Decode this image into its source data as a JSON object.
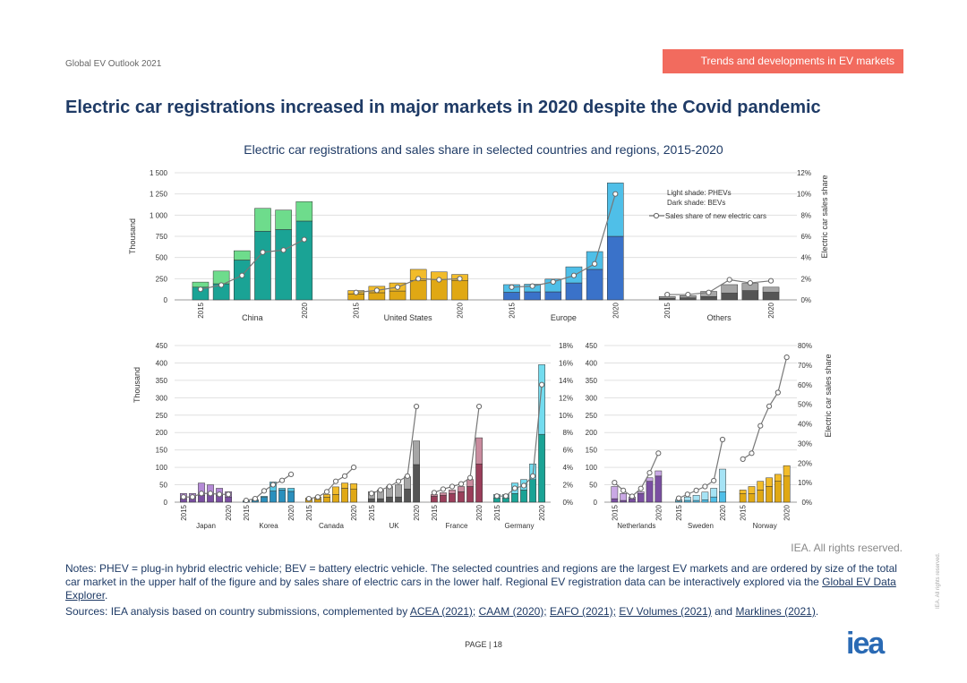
{
  "header": {
    "doc_label": "Global EV Outlook 2021",
    "section_tag": "Trends and developments in EV markets",
    "title": "Electric car registrations increased in major markets in 2020 despite the Covid pandemic"
  },
  "footer": {
    "rights": "IEA. All rights reserved.",
    "notes_text": "Notes: PHEV = plug-in hybrid electric vehicle; BEV = battery electric vehicle. The selected countries and regions are the largest EV markets and are ordered by size of the total car market in the upper half of the figure and by sales share of electric cars in the lower half. Regional EV registration data can be interactively explored via the ",
    "notes_link": "Global EV Data Explorer",
    "notes_end": ".",
    "sources_prefix": "Sources: IEA analysis based on country submissions, complemented by ",
    "sources_links": [
      "ACEA (2021);",
      "CAAM (2020);",
      "EAFO (2021);",
      "EV Volumes (2021)",
      "Marklines (2021)"
    ],
    "sources_and": "and",
    "sources_end": ".",
    "page_label": "PAGE | 18",
    "logo": "iea",
    "side_note": "IEA. All rights reserved."
  },
  "colors": {
    "China": {
      "dark": "#1aa395",
      "light": "#6edc8c"
    },
    "United States": {
      "dark": "#e0a814",
      "light": "#f2bc2a"
    },
    "Europe": {
      "dark": "#3a72c9",
      "light": "#4fbfe8"
    },
    "Others": {
      "dark": "#555555",
      "light": "#a6a6a6"
    },
    "Japan": {
      "dark": "#7a4fa1",
      "light": "#b48ad6"
    },
    "Korea": {
      "dark": "#2a8fbd",
      "light": "#56c8e6"
    },
    "Canada": {
      "dark": "#e0a814",
      "light": "#f2bc2a"
    },
    "UK": {
      "dark": "#555555",
      "light": "#a6a6a6"
    },
    "France": {
      "dark": "#9a3e5a",
      "light": "#c98b9e"
    },
    "Germany": {
      "dark": "#1aa395",
      "light": "#73dcef"
    },
    "Netherlands": {
      "dark": "#7a4fa1",
      "light": "#c9a8e4"
    },
    "Sweden": {
      "dark": "#4fbfe8",
      "light": "#a6e3f5"
    },
    "Norway": {
      "dark": "#e0a814",
      "light": "#f2bc2a"
    }
  },
  "chart_data": [
    {
      "type": "bar",
      "stacked": true,
      "title": "Electric car registrations and sales share in selected countries and regions, 2015-2020",
      "ylabel": "Thousand",
      "y2label": "Electric car sales share",
      "ylim": [
        0,
        1500
      ],
      "yticks": [
        0,
        250,
        500,
        750,
        1000,
        1250,
        1500
      ],
      "yticklabels": [
        "0",
        "250",
        "500",
        "750",
        "1 000",
        "1 250",
        "1 500"
      ],
      "y2lim": [
        0,
        12
      ],
      "y2ticks": [
        0,
        2,
        4,
        6,
        8,
        10,
        12
      ],
      "y2ticklabels": [
        "0%",
        "2%",
        "4%",
        "6%",
        "8%",
        "10%",
        "12%"
      ],
      "years": [
        "2015",
        "2020"
      ],
      "legend": {
        "light": "Light shade: PHEVs",
        "dark": "Dark shade: BEVs",
        "line": "Sales share of new electric cars"
      },
      "groups": [
        {
          "name": "China",
          "bev": [
            150,
            190,
            470,
            810,
            830,
            930
          ],
          "phev": [
            60,
            150,
            110,
            270,
            230,
            230
          ],
          "share": [
            1.0,
            1.4,
            2.3,
            4.5,
            4.7,
            5.7
          ]
        },
        {
          "name": "United States",
          "bev": [
            70,
            85,
            105,
            230,
            240,
            230
          ],
          "phev": [
            40,
            75,
            95,
            130,
            90,
            70
          ],
          "share": [
            0.7,
            0.9,
            1.2,
            2.0,
            1.9,
            2.0
          ]
        },
        {
          "name": "Europe",
          "bev": [
            90,
            95,
            95,
            200,
            360,
            750
          ],
          "phev": [
            90,
            90,
            150,
            190,
            210,
            630
          ],
          "share": [
            1.2,
            1.3,
            1.7,
            2.3,
            3.4,
            10.0
          ]
        },
        {
          "name": "Others",
          "bev": [
            20,
            25,
            40,
            80,
            110,
            90
          ],
          "phev": [
            20,
            25,
            60,
            100,
            85,
            60
          ],
          "share": [
            0.5,
            0.5,
            0.7,
            1.9,
            1.6,
            1.8
          ]
        }
      ]
    },
    {
      "type": "bar",
      "stacked": true,
      "ylabel": "Thousand",
      "ylim": [
        0,
        450
      ],
      "yticks": [
        0,
        50,
        100,
        150,
        200,
        250,
        300,
        350,
        400,
        450
      ],
      "y2lim": [
        0,
        18
      ],
      "y2ticks": [
        0,
        2,
        4,
        6,
        8,
        10,
        12,
        14,
        16,
        18
      ],
      "y2ticklabels": [
        "0%",
        "2%",
        "4%",
        "6%",
        "8%",
        "10%",
        "12%",
        "14%",
        "16%",
        "18%"
      ],
      "years": [
        "2015",
        "2020"
      ],
      "groups": [
        {
          "name": "Japan",
          "bev": [
            10,
            15,
            20,
            25,
            20,
            15
          ],
          "phev": [
            15,
            10,
            35,
            25,
            20,
            15
          ],
          "share": [
            0.6,
            0.6,
            1.0,
            1.0,
            0.9,
            0.9
          ]
        },
        {
          "name": "Korea",
          "bev": [
            3,
            5,
            14,
            32,
            35,
            31
          ],
          "phev": [
            1,
            2,
            3,
            26,
            5,
            9
          ],
          "share": [
            0.2,
            0.4,
            1.3,
            2.0,
            2.5,
            3.2
          ]
        },
        {
          "name": "Canada",
          "bev": [
            6,
            8,
            14,
            22,
            40,
            38
          ],
          "phev": [
            6,
            7,
            8,
            22,
            15,
            15
          ],
          "share": [
            0.4,
            0.6,
            1.2,
            2.4,
            3.0,
            4.0
          ]
        },
        {
          "name": "UK",
          "bev": [
            10,
            10,
            15,
            15,
            38,
            108
          ],
          "phev": [
            20,
            25,
            30,
            35,
            35,
            68
          ],
          "share": [
            1.0,
            1.4,
            1.8,
            2.4,
            3.0,
            11.0
          ]
        },
        {
          "name": "France",
          "bev": [
            17,
            20,
            25,
            30,
            45,
            110
          ],
          "phev": [
            5,
            7,
            10,
            15,
            20,
            75
          ],
          "share": [
            1.1,
            1.5,
            1.8,
            2.1,
            2.8,
            11.0
          ]
        },
        {
          "name": "Germany",
          "bev": [
            12,
            12,
            25,
            35,
            65,
            195
          ],
          "phev": [
            10,
            10,
            30,
            30,
            45,
            200
          ],
          "share": [
            0.7,
            0.7,
            1.6,
            1.9,
            3.0,
            13.5
          ]
        }
      ]
    },
    {
      "type": "bar",
      "stacked": true,
      "ylim": [
        0,
        450
      ],
      "yticks": [
        0,
        50,
        100,
        150,
        200,
        250,
        300,
        350,
        400,
        450
      ],
      "y2label": "Electric car sales share",
      "y2lim": [
        0,
        80
      ],
      "y2ticks": [
        0,
        10,
        20,
        30,
        40,
        50,
        60,
        70,
        80
      ],
      "y2ticklabels": [
        "0%",
        "10%",
        "20%",
        "30%",
        "40%",
        "50%",
        "60%",
        "70%",
        "80%"
      ],
      "years": [
        "2015",
        "2020"
      ],
      "groups": [
        {
          "name": "Netherlands",
          "bev": [
            10,
            5,
            10,
            25,
            60,
            75
          ],
          "phev": [
            35,
            20,
            5,
            5,
            10,
            15
          ],
          "share": [
            10,
            6,
            3,
            7,
            15,
            25
          ]
        },
        {
          "name": "Sweden",
          "bev": [
            3,
            5,
            5,
            7,
            15,
            30
          ],
          "phev": [
            5,
            10,
            15,
            22,
            25,
            65
          ],
          "share": [
            2,
            4,
            6,
            8,
            11,
            32
          ]
        },
        {
          "name": "Norway",
          "bev": [
            25,
            25,
            35,
            45,
            60,
            75
          ],
          "phev": [
            10,
            20,
            25,
            25,
            20,
            30
          ],
          "share": [
            22,
            25,
            39,
            49,
            56,
            74
          ]
        }
      ]
    }
  ]
}
